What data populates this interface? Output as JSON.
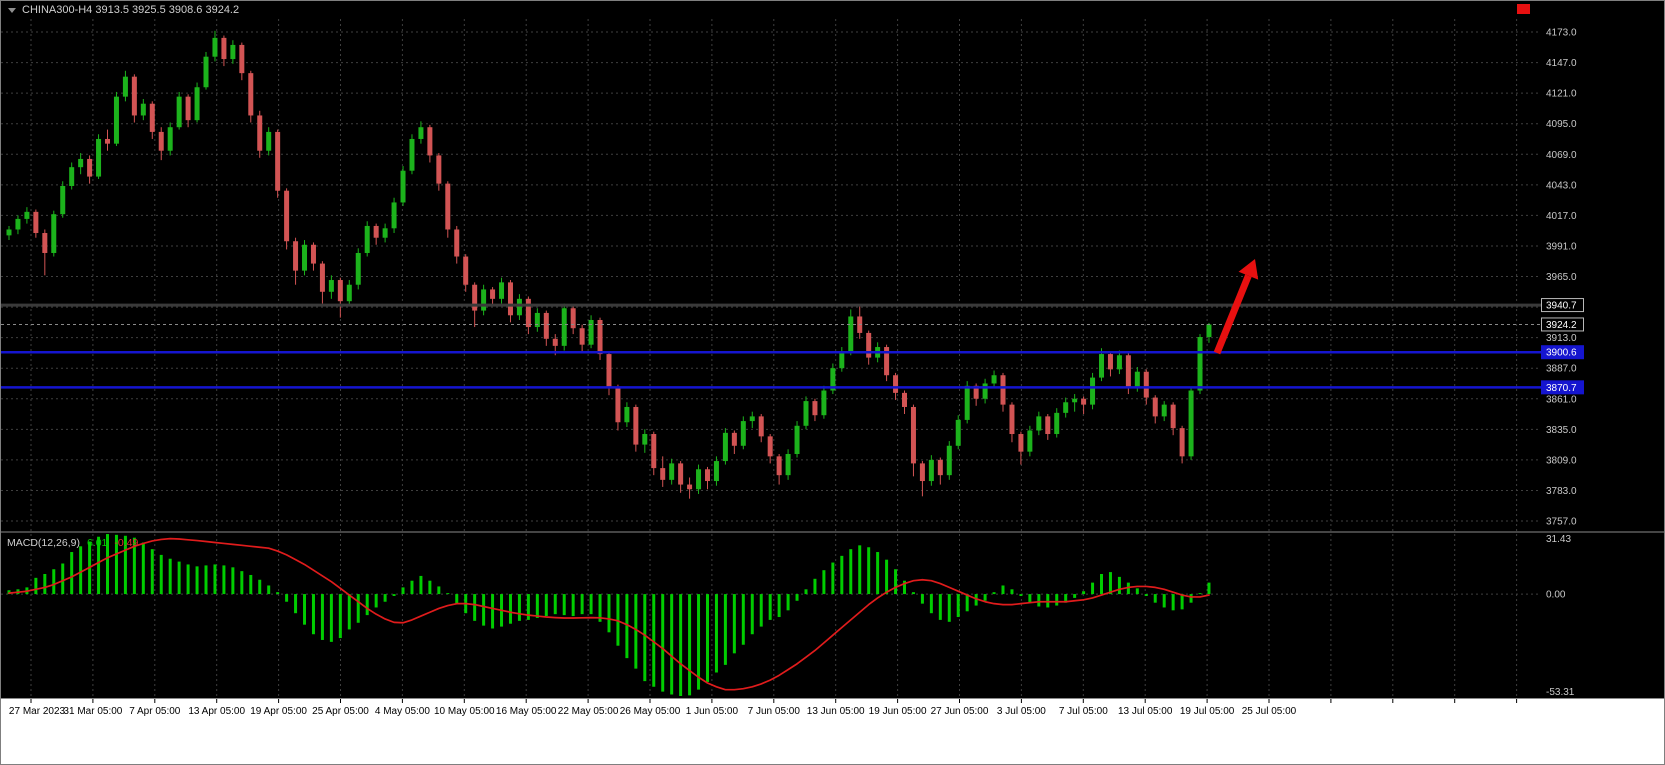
{
  "header": {
    "title": "CHINA300-H4 3913.5 3925.5 3908.6 3924.2"
  },
  "colors": {
    "background": "#000000",
    "grid": "#3f3f3f",
    "bull": "#1cb31c",
    "bear": "#d25454",
    "macd_histogram": "#00cc00",
    "macd_signal": "#e01c1c",
    "arrow": "#e81010",
    "axis_text": "#c9c9c9",
    "time_text": "#000000",
    "title_text": "#cfcfcf",
    "panel_divider": "#8a8a8a",
    "bottom_strip": "#ffffff",
    "badge_text": "#ffffff",
    "level_blue": "#1515cf",
    "level_dark": "#3a3a3a"
  },
  "chart_data": {
    "type": "candlestick",
    "symbol": "CHINA300",
    "timeframe": "H4",
    "quote": {
      "open": 3913.5,
      "high": 3925.5,
      "low": 3908.6,
      "close": 3924.2
    },
    "price_axis": {
      "min": 3757.0,
      "max": 4173.0,
      "step": 26.0,
      "tick_labels": [
        "4173.0",
        "4147.0",
        "4121.0",
        "4095.0",
        "4069.0",
        "4043.0",
        "4017.0",
        "3991.0",
        "3965.0",
        "3913.0",
        "3887.0",
        "3861.0",
        "3835.0",
        "3809.0",
        "3783.0",
        "3757.0"
      ]
    },
    "time_labels": [
      "27 Mar 2023",
      "31 Mar 05:00",
      "7 Apr 05:00",
      "13 Apr 05:00",
      "19 Apr 05:00",
      "25 Apr 05:00",
      "4 May 05:00",
      "10 May 05:00",
      "16 May 05:00",
      "22 May 05:00",
      "26 May 05:00",
      "1 Jun 05:00",
      "7 Jun 05:00",
      "13 Jun 05:00",
      "19 Jun 05:00",
      "27 Jun 05:00",
      "3 Jul 05:00",
      "7 Jul 05:00",
      "13 Jul 05:00",
      "19 Jul 05:00",
      "25 Jul 05:00"
    ],
    "candles_ohlc": [
      [
        4000,
        4008,
        3996,
        4005
      ],
      [
        4005,
        4017,
        4001,
        4014
      ],
      [
        4014,
        4024,
        4010,
        4020
      ],
      [
        4020,
        4022,
        3998,
        4002
      ],
      [
        4002,
        4005,
        3966,
        3985
      ],
      [
        3985,
        4021,
        3982,
        4018
      ],
      [
        4018,
        4046,
        4015,
        4042
      ],
      [
        4042,
        4062,
        4039,
        4058
      ],
      [
        4058,
        4070,
        4052,
        4065
      ],
      [
        4065,
        4068,
        4044,
        4050
      ],
      [
        4050,
        4086,
        4048,
        4082
      ],
      [
        4082,
        4090,
        4072,
        4078
      ],
      [
        4078,
        4122,
        4076,
        4118
      ],
      [
        4118,
        4140,
        4114,
        4135
      ],
      [
        4135,
        4137,
        4096,
        4102
      ],
      [
        4102,
        4116,
        4098,
        4112
      ],
      [
        4112,
        4114,
        4082,
        4088
      ],
      [
        4088,
        4092,
        4064,
        4072
      ],
      [
        4072,
        4096,
        4068,
        4092
      ],
      [
        4092,
        4122,
        4090,
        4118
      ],
      [
        4118,
        4120,
        4092,
        4098
      ],
      [
        4098,
        4130,
        4096,
        4126
      ],
      [
        4126,
        4156,
        4124,
        4152
      ],
      [
        4152,
        4174,
        4148,
        4168
      ],
      [
        4168,
        4170,
        4144,
        4150
      ],
      [
        4150,
        4166,
        4146,
        4162
      ],
      [
        4162,
        4164,
        4132,
        4138
      ],
      [
        4138,
        4140,
        4096,
        4102
      ],
      [
        4102,
        4106,
        4066,
        4072
      ],
      [
        4072,
        4092,
        4068,
        4088
      ],
      [
        4088,
        4090,
        4032,
        4038
      ],
      [
        4038,
        4040,
        3988,
        3995
      ],
      [
        3995,
        3998,
        3958,
        3970
      ],
      [
        3970,
        3996,
        3966,
        3992
      ],
      [
        3992,
        3994,
        3970,
        3976
      ],
      [
        3976,
        3978,
        3942,
        3952
      ],
      [
        3952,
        3966,
        3946,
        3962
      ],
      [
        3962,
        3964,
        3930,
        3944
      ],
      [
        3944,
        3962,
        3940,
        3958
      ],
      [
        3958,
        3989,
        3954,
        3985
      ],
      [
        3985,
        4012,
        3982,
        4008
      ],
      [
        4008,
        4010,
        3992,
        3998
      ],
      [
        3998,
        4010,
        3994,
        4006
      ],
      [
        4006,
        4032,
        4002,
        4028
      ],
      [
        4028,
        4059,
        4025,
        4055
      ],
      [
        4055,
        4086,
        4052,
        4082
      ],
      [
        4082,
        4097,
        4078,
        4092
      ],
      [
        4092,
        4094,
        4062,
        4068
      ],
      [
        4068,
        4070,
        4038,
        4044
      ],
      [
        4044,
        4046,
        3998,
        4005
      ],
      [
        4005,
        4008,
        3976,
        3982
      ],
      [
        3982,
        3984,
        3952,
        3958
      ],
      [
        3958,
        3960,
        3922,
        3936
      ],
      [
        3936,
        3958,
        3932,
        3954
      ],
      [
        3954,
        3956,
        3940,
        3946
      ],
      [
        3946,
        3964,
        3942,
        3960
      ],
      [
        3960,
        3962,
        3926,
        3932
      ],
      [
        3932,
        3950,
        3928,
        3946
      ],
      [
        3946,
        3948,
        3916,
        3922
      ],
      [
        3922,
        3938,
        3918,
        3934
      ],
      [
        3934,
        3936,
        3906,
        3912
      ],
      [
        3912,
        3916,
        3898,
        3906
      ],
      [
        3906,
        3942,
        3902,
        3938
      ],
      [
        3938,
        3940,
        3916,
        3921
      ],
      [
        3921,
        3924,
        3901,
        3907
      ],
      [
        3907,
        3932,
        3904,
        3928
      ],
      [
        3928,
        3930,
        3894,
        3899
      ],
      [
        3899,
        3901,
        3864,
        3871
      ],
      [
        3871,
        3873,
        3834,
        3841
      ],
      [
        3841,
        3858,
        3837,
        3854
      ],
      [
        3854,
        3856,
        3816,
        3822
      ],
      [
        3822,
        3835,
        3815,
        3831
      ],
      [
        3831,
        3833,
        3796,
        3802
      ],
      [
        3802,
        3812,
        3786,
        3792
      ],
      [
        3792,
        3810,
        3788,
        3806
      ],
      [
        3806,
        3808,
        3781,
        3788
      ],
      [
        3788,
        3794,
        3776,
        3784
      ],
      [
        3784,
        3805,
        3780,
        3801
      ],
      [
        3801,
        3803,
        3784,
        3791
      ],
      [
        3791,
        3812,
        3787,
        3808
      ],
      [
        3808,
        3836,
        3805,
        3832
      ],
      [
        3832,
        3834,
        3814,
        3821
      ],
      [
        3821,
        3846,
        3818,
        3842
      ],
      [
        3842,
        3850,
        3836,
        3846
      ],
      [
        3846,
        3848,
        3824,
        3829
      ],
      [
        3829,
        3831,
        3806,
        3812
      ],
      [
        3812,
        3814,
        3788,
        3796
      ],
      [
        3796,
        3818,
        3792,
        3814
      ],
      [
        3814,
        3842,
        3811,
        3838
      ],
      [
        3838,
        3863,
        3835,
        3859
      ],
      [
        3859,
        3861,
        3842,
        3847
      ],
      [
        3847,
        3872,
        3844,
        3868
      ],
      [
        3868,
        3891,
        3865,
        3887
      ],
      [
        3887,
        3905,
        3884,
        3901
      ],
      [
        3901,
        3937,
        3898,
        3931
      ],
      [
        3931,
        3941,
        3912,
        3917
      ],
      [
        3917,
        3919,
        3890,
        3896
      ],
      [
        3896,
        3909,
        3892,
        3905
      ],
      [
        3905,
        3907,
        3876,
        3881
      ],
      [
        3881,
        3883,
        3860,
        3866
      ],
      [
        3866,
        3868,
        3848,
        3854
      ],
      [
        3854,
        3856,
        3795,
        3806
      ],
      [
        3806,
        3808,
        3778,
        3791
      ],
      [
        3791,
        3813,
        3787,
        3809
      ],
      [
        3809,
        3811,
        3788,
        3796
      ],
      [
        3796,
        3825,
        3792,
        3821
      ],
      [
        3821,
        3847,
        3818,
        3843
      ],
      [
        3843,
        3876,
        3840,
        3872
      ],
      [
        3872,
        3874,
        3855,
        3861
      ],
      [
        3861,
        3878,
        3857,
        3874
      ],
      [
        3874,
        3885,
        3870,
        3881
      ],
      [
        3881,
        3883,
        3850,
        3856
      ],
      [
        3856,
        3858,
        3824,
        3831
      ],
      [
        3831,
        3833,
        3805,
        3816
      ],
      [
        3816,
        3838,
        3812,
        3834
      ],
      [
        3834,
        3850,
        3830,
        3846
      ],
      [
        3846,
        3848,
        3826,
        3831
      ],
      [
        3831,
        3853,
        3828,
        3849
      ],
      [
        3849,
        3862,
        3845,
        3858
      ],
      [
        3858,
        3865,
        3850,
        3861
      ],
      [
        3861,
        3863,
        3848,
        3856
      ],
      [
        3856,
        3883,
        3852,
        3879
      ],
      [
        3879,
        3904,
        3876,
        3899
      ],
      [
        3899,
        3901,
        3880,
        3886
      ],
      [
        3886,
        3902,
        3882,
        3898
      ],
      [
        3898,
        3900,
        3865,
        3871
      ],
      [
        3871,
        3888,
        3867,
        3884
      ],
      [
        3884,
        3886,
        3856,
        3862
      ],
      [
        3862,
        3864,
        3840,
        3846
      ],
      [
        3846,
        3859,
        3842,
        3856
      ],
      [
        3856,
        3858,
        3830,
        3836
      ],
      [
        3836,
        3838,
        3806,
        3812
      ],
      [
        3812,
        3871,
        3809,
        3868
      ],
      [
        3868,
        3916,
        3865,
        3913.5
      ],
      [
        3913.5,
        3925.5,
        3908.6,
        3924.2
      ]
    ],
    "levels": [
      {
        "label": "3940.7",
        "value": 3940.7,
        "line_color": "#3a3a3a",
        "width": 3,
        "style": "solid",
        "badge_bg": "#000000",
        "badge_border": "#b9b9b9"
      },
      {
        "label": "3924.2",
        "value": 3924.2,
        "line_color": "#8a8a8a",
        "width": 1,
        "style": "dashed",
        "badge_bg": "#000000",
        "badge_border": "#b9b9b9"
      },
      {
        "label": "3900.6",
        "value": 3900.6,
        "line_color": "#1515cf",
        "width": 2.5,
        "style": "solid",
        "badge_bg": "#1515cf",
        "badge_border": "#1515cf"
      },
      {
        "label": "3870.7",
        "value": 3870.7,
        "line_color": "#1515cf",
        "width": 2.5,
        "style": "solid",
        "badge_bg": "#1515cf",
        "badge_border": "#1515cf"
      }
    ],
    "annotations": [
      {
        "type": "arrow-up-right",
        "color": "#e81010"
      }
    ],
    "macd": {
      "label": "MACD(12,26,9)",
      "main_value": "6.01",
      "signal_value": "-0.49",
      "axis_labels": [
        "31.43",
        "0.00",
        "-53.31"
      ],
      "range": [
        -53.31,
        31.43
      ],
      "histogram": [
        2,
        2.5,
        3.5,
        8.5,
        10.5,
        13,
        16,
        22,
        25,
        27.5,
        30,
        31.4,
        31,
        30.5,
        29.5,
        27,
        23.5,
        20.5,
        18.5,
        17,
        15.5,
        14.5,
        15,
        15.5,
        15,
        14,
        12,
        10,
        7.5,
        4.5,
        1,
        -4,
        -10,
        -16,
        -21,
        -24,
        -25,
        -23,
        -18.5,
        -15,
        -11,
        -7,
        -4,
        -1,
        3.5,
        7,
        9.5,
        7,
        4,
        0.5,
        -5,
        -10,
        -14,
        -16.5,
        -18,
        -17,
        -15.5,
        -14,
        -13.5,
        -12.5,
        -11.5,
        -10.5,
        -11,
        -11.5,
        -10.5,
        -10.5,
        -14.5,
        -20,
        -27,
        -33.5,
        -39,
        -45.5,
        -48.5,
        -51,
        -52.5,
        -53.31,
        -53,
        -50,
        -46,
        -41,
        -37,
        -31,
        -26.5,
        -21,
        -17,
        -13.5,
        -12,
        -8.5,
        -3.5,
        2.5,
        8,
        12.5,
        16.5,
        20,
        23.5,
        25.5,
        24.5,
        22,
        18,
        13,
        7,
        1,
        -5,
        -10,
        -13.5,
        -14.5,
        -12,
        -9,
        -6,
        -3.5,
        1,
        4.5,
        2.5,
        -1,
        -4.5,
        -6.5,
        -7,
        -6,
        -4.5,
        -2,
        1.5,
        6,
        10.5,
        11.5,
        9,
        6,
        3,
        -1,
        -4.5,
        -7,
        -8.5,
        -8,
        -4.5,
        0.5,
        6.01
      ],
      "signal": [
        0.5,
        1,
        1.5,
        2.5,
        3.5,
        5,
        7,
        9,
        11.5,
        14,
        16.5,
        19,
        21,
        23,
        25,
        26.5,
        27.8,
        28.6,
        29,
        28.8,
        28.4,
        28,
        27.5,
        27,
        26.5,
        26,
        25.5,
        25,
        24.5,
        24,
        22.5,
        20.5,
        18,
        15.5,
        12.5,
        9.5,
        6.5,
        3,
        -0.5,
        -4,
        -7.5,
        -10.5,
        -13,
        -14.8,
        -15,
        -13.5,
        -11.5,
        -9.5,
        -7.5,
        -6,
        -5,
        -5,
        -5.5,
        -6.5,
        -7.5,
        -8.5,
        -9.5,
        -10.3,
        -11,
        -11.5,
        -12,
        -12.3,
        -12.5,
        -12.5,
        -12.4,
        -12.3,
        -12.4,
        -13,
        -14,
        -16,
        -18.5,
        -21.5,
        -25,
        -28.5,
        -32.5,
        -36.5,
        -40,
        -43.5,
        -46.5,
        -48.5,
        -50,
        -50,
        -49.5,
        -48.5,
        -47,
        -45,
        -42.5,
        -39.5,
        -36.5,
        -33,
        -29.5,
        -25.5,
        -21.5,
        -17.5,
        -13.5,
        -9.5,
        -5.5,
        -2,
        1,
        3.5,
        5.5,
        7,
        7.5,
        7,
        5.5,
        3.5,
        1.5,
        -0.5,
        -2.5,
        -4,
        -5,
        -5.5,
        -5.5,
        -5,
        -4.5,
        -4,
        -4,
        -4,
        -4,
        -3.5,
        -3,
        -2,
        -0.5,
        1,
        2.5,
        3.5,
        4,
        4,
        3.5,
        2.5,
        1,
        -0.5,
        -1.5,
        -1.5,
        -0.49
      ]
    }
  }
}
